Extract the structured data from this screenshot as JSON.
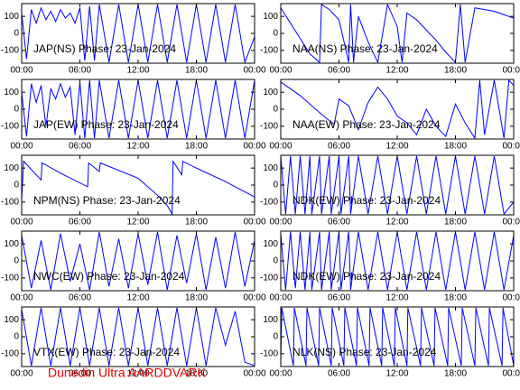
{
  "chart_data": [
    {
      "type": "line",
      "annotation": "JAP(NS) Phase: 23-Jan-2024",
      "color": "#0000ff",
      "xlim": [
        0,
        24
      ],
      "ylim": [
        -175,
        175
      ],
      "xticks": [
        {
          "value": 0,
          "label": "00:00"
        },
        {
          "value": 6,
          "label": "06:00"
        },
        {
          "value": 12,
          "label": "12:00"
        },
        {
          "value": 18,
          "label": "18:00"
        },
        {
          "value": 24,
          "label": "00:00"
        }
      ],
      "yticks": [
        -100,
        0,
        100
      ],
      "x": [
        0,
        0.5,
        1,
        1.5,
        2,
        2.5,
        3,
        3.5,
        4,
        4.5,
        5,
        5.5,
        6,
        6.5,
        7,
        7.5,
        8,
        9,
        10,
        11,
        12,
        13,
        14,
        15,
        16,
        17,
        18,
        19,
        20,
        21,
        22,
        23,
        24
      ],
      "values": [
        120,
        -150,
        140,
        60,
        150,
        80,
        130,
        70,
        140,
        90,
        120,
        60,
        150,
        -160,
        160,
        -160,
        170,
        -170,
        170,
        -170,
        170,
        -170,
        170,
        -170,
        170,
        -170,
        170,
        -170,
        170,
        -170,
        170,
        -170,
        -20
      ]
    },
    {
      "type": "line",
      "annotation": "NAA(NS) Phase: 23-Jan-2024",
      "color": "#0000ff",
      "xlim": [
        0,
        24
      ],
      "ylim": [
        -175,
        175
      ],
      "xticks": [
        {
          "value": 0,
          "label": "00:00"
        },
        {
          "value": 6,
          "label": "06:00"
        },
        {
          "value": 12,
          "label": "12:00"
        },
        {
          "value": 18,
          "label": "18:00"
        },
        {
          "value": 24,
          "label": "00:00"
        }
      ],
      "yticks": [
        -100,
        0,
        100
      ],
      "x": [
        0,
        1,
        2,
        3,
        4,
        4.2,
        5,
        6,
        7,
        7.2,
        7.5,
        8,
        9,
        10,
        11,
        12,
        12.5,
        13,
        14,
        15,
        16,
        17,
        18,
        18.5,
        19,
        20,
        21,
        22,
        23,
        24
      ],
      "values": [
        150,
        60,
        -30,
        -120,
        -170,
        170,
        140,
        80,
        -170,
        170,
        -170,
        100,
        -50,
        -170,
        170,
        40,
        -170,
        120,
        80,
        20,
        -40,
        -110,
        -170,
        170,
        -170,
        150,
        140,
        130,
        110,
        90
      ]
    },
    {
      "type": "line",
      "annotation": "JAP(EW) Phase: 23-Jan-2024",
      "color": "#0000ff",
      "xlim": [
        0,
        24
      ],
      "ylim": [
        -175,
        175
      ],
      "xticks": [
        {
          "value": 0,
          "label": "00:00"
        },
        {
          "value": 6,
          "label": "06:00"
        },
        {
          "value": 12,
          "label": "12:00"
        },
        {
          "value": 18,
          "label": "18:00"
        },
        {
          "value": 24,
          "label": "00:00"
        }
      ],
      "yticks": [
        -100,
        0,
        100
      ],
      "x": [
        0,
        0.5,
        1,
        1.5,
        2,
        2.5,
        3,
        3.5,
        4,
        4.5,
        5,
        5.5,
        6,
        6.5,
        7,
        7.5,
        8,
        9,
        10,
        11,
        12,
        13,
        14,
        15,
        16,
        17,
        18,
        19,
        20,
        21,
        22,
        23,
        24
      ],
      "values": [
        100,
        -160,
        150,
        40,
        140,
        -100,
        120,
        60,
        150,
        70,
        130,
        -150,
        160,
        -170,
        170,
        -170,
        170,
        -170,
        170,
        -170,
        170,
        -170,
        170,
        -170,
        170,
        -170,
        170,
        -170,
        170,
        -170,
        170,
        -170,
        170
      ]
    },
    {
      "type": "line",
      "annotation": "NAA(EW) Phase: 23-Jan-2024",
      "color": "#0000ff",
      "xlim": [
        0,
        24
      ],
      "ylim": [
        -175,
        175
      ],
      "xticks": [
        {
          "value": 0,
          "label": "00:00"
        },
        {
          "value": 6,
          "label": "06:00"
        },
        {
          "value": 12,
          "label": "12:00"
        },
        {
          "value": 18,
          "label": "18:00"
        },
        {
          "value": 24,
          "label": "00:00"
        }
      ],
      "yticks": [
        -100,
        0,
        100
      ],
      "x": [
        0,
        2,
        4,
        5.5,
        6,
        7,
        8,
        9,
        10,
        11,
        12,
        13,
        14,
        15,
        16,
        17,
        18,
        19,
        20,
        20.5,
        21,
        22,
        23,
        23.5,
        24
      ],
      "values": [
        160,
        80,
        -20,
        -90,
        60,
        20,
        -120,
        40,
        130,
        60,
        -40,
        -80,
        -150,
        0,
        -100,
        -160,
        30,
        -80,
        -170,
        170,
        -150,
        170,
        -170,
        170,
        140
      ]
    },
    {
      "type": "line",
      "annotation": "NPM(NS) Phase: 23-Jan-2024",
      "color": "#0000ff",
      "xlim": [
        0,
        24
      ],
      "ylim": [
        -175,
        175
      ],
      "xticks": [
        {
          "value": 0,
          "label": "00:00"
        },
        {
          "value": 6,
          "label": "06:00"
        },
        {
          "value": 12,
          "label": "12:00"
        },
        {
          "value": 18,
          "label": "18:00"
        },
        {
          "value": 24,
          "label": "00:00"
        }
      ],
      "yticks": [
        -100,
        0,
        100
      ],
      "x": [
        0,
        0.2,
        2,
        2.1,
        4,
        6.8,
        6.9,
        8,
        8.1,
        12,
        14,
        15,
        15.5,
        15.6,
        16.5,
        16.6,
        18,
        21,
        24
      ],
      "values": [
        -90,
        140,
        30,
        130,
        70,
        -10,
        130,
        80,
        130,
        40,
        -60,
        -120,
        -170,
        140,
        60,
        140,
        100,
        20,
        -70
      ]
    },
    {
      "type": "line",
      "annotation": "NDK(EW) Phase: 23-Jan-2024",
      "color": "#0000ff",
      "xlim": [
        0,
        24
      ],
      "ylim": [
        -175,
        175
      ],
      "xticks": [
        {
          "value": 0,
          "label": "00:00"
        },
        {
          "value": 6,
          "label": "06:00"
        },
        {
          "value": 12,
          "label": "12:00"
        },
        {
          "value": 18,
          "label": "18:00"
        },
        {
          "value": 24,
          "label": "00:00"
        }
      ],
      "yticks": [
        -100,
        0,
        100
      ],
      "x": [
        0,
        0.5,
        1,
        1.5,
        2,
        2.5,
        3,
        3.2,
        4,
        4.2,
        5,
        5.2,
        6,
        6.2,
        7,
        7.2,
        8,
        9,
        10,
        11,
        12,
        13,
        14,
        15,
        16,
        17,
        18,
        19,
        20,
        21,
        22,
        23,
        24
      ],
      "values": [
        170,
        -170,
        170,
        -170,
        170,
        -170,
        170,
        -170,
        170,
        -170,
        170,
        -170,
        170,
        -170,
        170,
        -170,
        170,
        -170,
        170,
        -170,
        170,
        -170,
        170,
        -170,
        170,
        -170,
        170,
        -170,
        170,
        -170,
        170,
        -170,
        -100
      ]
    },
    {
      "type": "line",
      "annotation": "NWC(EW) Phase: 23-Jan-2024",
      "color": "#0000ff",
      "xlim": [
        0,
        24
      ],
      "ylim": [
        -175,
        175
      ],
      "xticks": [
        {
          "value": 0,
          "label": "00:00"
        },
        {
          "value": 6,
          "label": "06:00"
        },
        {
          "value": 12,
          "label": "12:00"
        },
        {
          "value": 18,
          "label": "18:00"
        },
        {
          "value": 24,
          "label": "00:00"
        }
      ],
      "yticks": [
        -100,
        0,
        100
      ],
      "x": [
        0,
        1,
        2,
        3,
        4,
        5,
        6,
        7,
        8,
        9,
        10,
        11,
        12,
        13,
        14,
        15,
        16,
        17,
        18,
        19,
        20,
        21,
        22,
        23,
        24
      ],
      "values": [
        150,
        -160,
        120,
        -170,
        160,
        -120,
        100,
        -170,
        170,
        -150,
        130,
        -160,
        160,
        -140,
        170,
        -170,
        150,
        -130,
        160,
        -170,
        140,
        -160,
        170,
        -150,
        120
      ]
    },
    {
      "type": "line",
      "annotation": "NDK(EW) Phase: 23-Jan-2024",
      "color": "#0000ff",
      "xlim": [
        0,
        24
      ],
      "ylim": [
        -175,
        175
      ],
      "xticks": [
        {
          "value": 0,
          "label": "00:00"
        },
        {
          "value": 6,
          "label": "06:00"
        },
        {
          "value": 12,
          "label": "12:00"
        },
        {
          "value": 18,
          "label": "18:00"
        },
        {
          "value": 24,
          "label": "00:00"
        }
      ],
      "yticks": [
        -100,
        0,
        100
      ],
      "x": [
        0,
        0.5,
        1,
        1.5,
        2,
        2.5,
        3,
        3.2,
        4,
        4.2,
        5,
        5.2,
        6,
        6.2,
        7,
        7.2,
        8,
        9,
        10,
        11,
        12,
        13,
        14,
        15,
        16,
        17,
        18,
        19,
        20,
        21,
        22,
        23,
        24
      ],
      "values": [
        160,
        -170,
        170,
        -160,
        170,
        -170,
        170,
        -170,
        170,
        -170,
        170,
        -170,
        170,
        -170,
        170,
        -170,
        170,
        -170,
        170,
        -170,
        170,
        -170,
        170,
        -170,
        170,
        -170,
        170,
        -170,
        170,
        -170,
        170,
        -170,
        150
      ]
    },
    {
      "type": "line",
      "annotation": "VTX(EW) Phase: 23-Jan-2024",
      "color": "#0000ff",
      "xlim": [
        0,
        24
      ],
      "ylim": [
        -175,
        175
      ],
      "xticks": [
        {
          "value": 0,
          "label": "00:00"
        },
        {
          "value": 6,
          "label": "06:00"
        },
        {
          "value": 12,
          "label": "12:00"
        },
        {
          "value": 18,
          "label": "18:00"
        },
        {
          "value": 24,
          "label": "00:00"
        }
      ],
      "yticks": [
        -100,
        0,
        100
      ],
      "x": [
        0,
        1,
        2,
        3,
        4,
        5,
        6,
        7,
        8,
        9,
        10,
        11,
        12,
        13,
        14,
        15,
        16,
        17,
        18,
        19,
        20,
        21,
        22,
        23,
        24
      ],
      "values": [
        160,
        -170,
        170,
        -170,
        170,
        -170,
        170,
        -170,
        170,
        -170,
        170,
        -170,
        170,
        -170,
        170,
        -170,
        170,
        -170,
        170,
        -170,
        170,
        -50,
        150,
        -150,
        -170
      ]
    },
    {
      "type": "line",
      "annotation": "NLK(NS) Phase: 23-Jan-2024",
      "color": "#0000ff",
      "xlim": [
        0,
        24
      ],
      "ylim": [
        -175,
        175
      ],
      "xticks": [
        {
          "value": 0,
          "label": "00:00"
        },
        {
          "value": 6,
          "label": "06:00"
        },
        {
          "value": 12,
          "label": "12:00"
        },
        {
          "value": 18,
          "label": "18:00"
        },
        {
          "value": 24,
          "label": "00:00"
        }
      ],
      "yticks": [
        -100,
        0,
        100
      ],
      "x": [
        0,
        0.1,
        1.3,
        1.4,
        2.6,
        2.7,
        3.9,
        4,
        5.2,
        5.3,
        6.5,
        6.6,
        7.8,
        7.9,
        9.1,
        9.2,
        10.4,
        10.5,
        11.7,
        11.8,
        13,
        13.1,
        14.4,
        14.5,
        15.8,
        15.9,
        17.2,
        17.3,
        18.6,
        18.7,
        20,
        20.1,
        21.4,
        21.5,
        22.8,
        22.9,
        24
      ],
      "values": [
        -170,
        170,
        -170,
        170,
        -170,
        170,
        -170,
        170,
        -170,
        170,
        -170,
        170,
        -170,
        170,
        -170,
        170,
        -170,
        170,
        -170,
        170,
        -170,
        170,
        -170,
        170,
        -170,
        170,
        -170,
        170,
        -170,
        170,
        -170,
        170,
        -170,
        170,
        -170,
        170,
        -170
      ]
    }
  ],
  "footer": "Dunedin Ultra AARDDVARK"
}
